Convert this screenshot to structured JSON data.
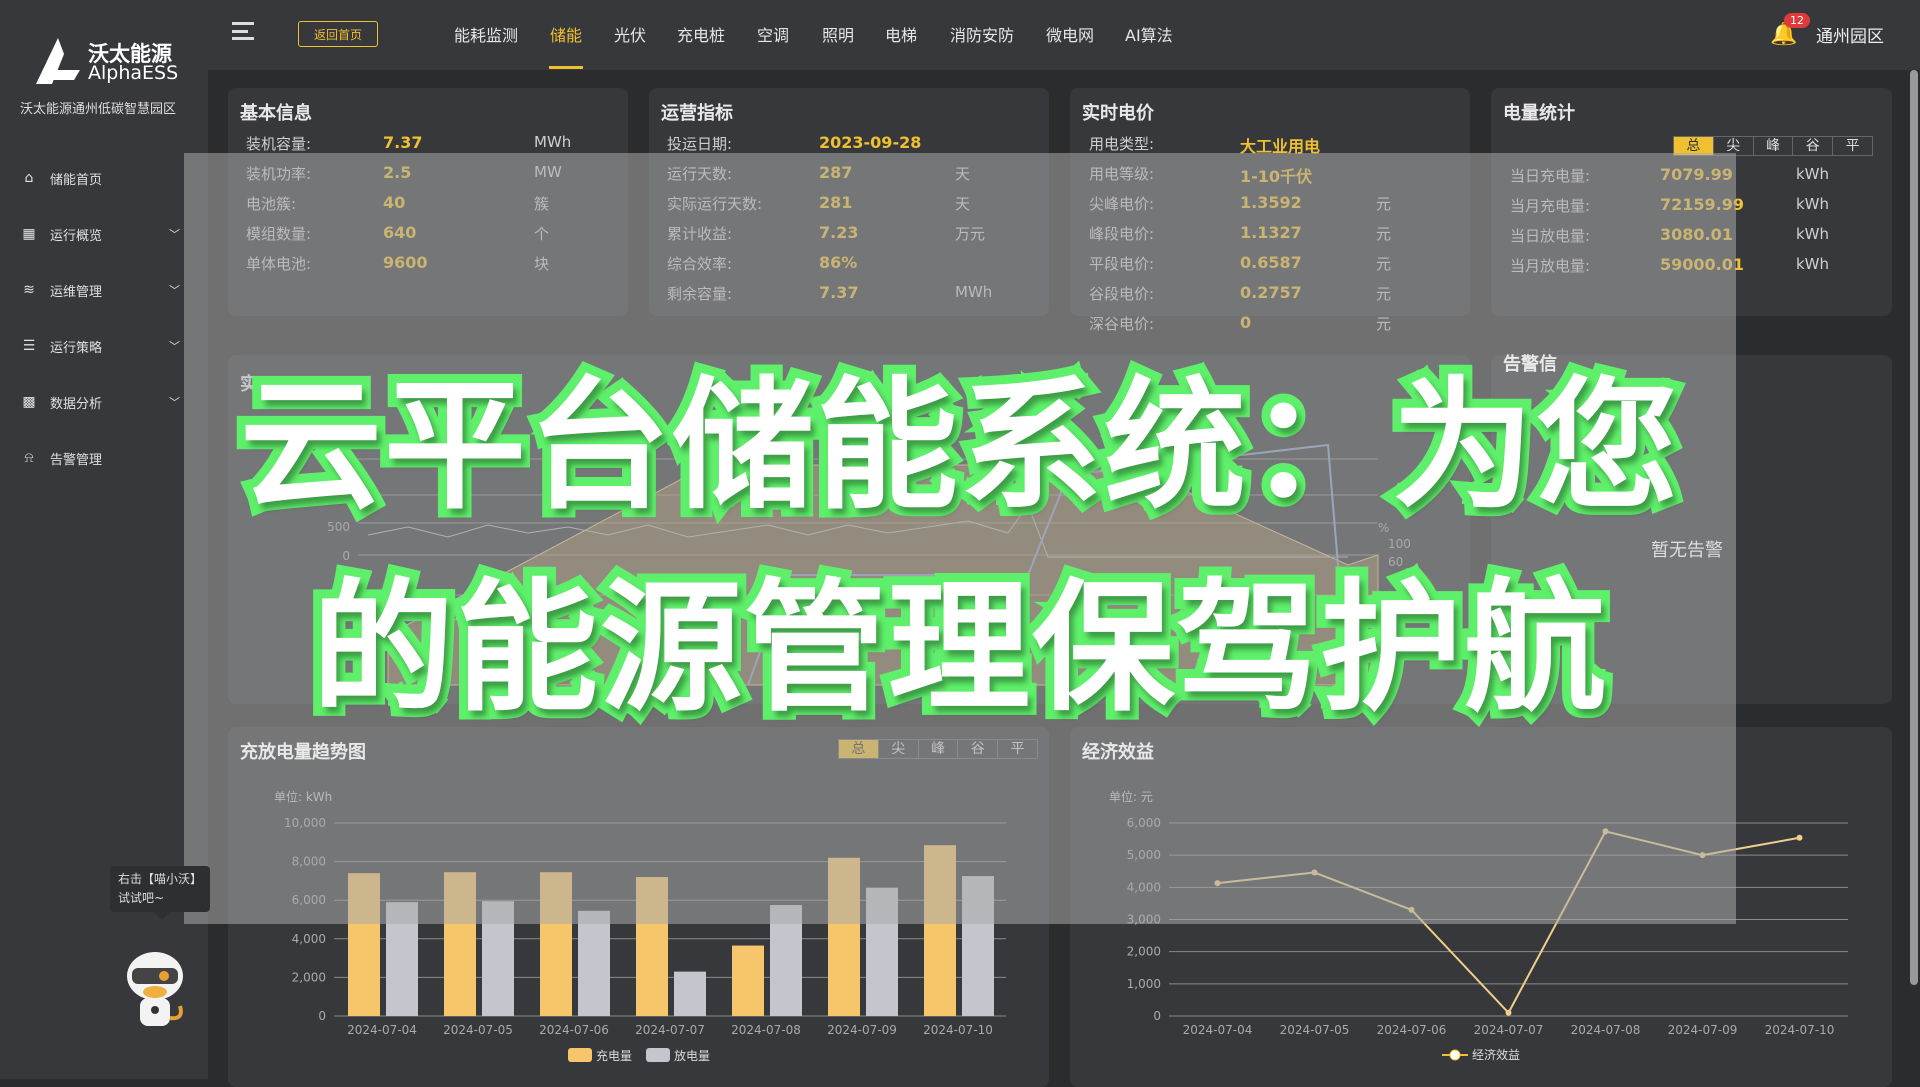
{
  "brand": {
    "name_cn": "沃太能源",
    "name_en": "AlphaESS",
    "park": "沃太能源通州低碳智慧园区"
  },
  "sidebar": {
    "items": [
      {
        "label": "储能首页",
        "icon": "home-icon",
        "expandable": false
      },
      {
        "label": "运行概览",
        "icon": "grid-icon",
        "expandable": true
      },
      {
        "label": "运维管理",
        "icon": "layers-icon",
        "expandable": true
      },
      {
        "label": "运行策略",
        "icon": "list-icon",
        "expandable": true
      },
      {
        "label": "数据分析",
        "icon": "chart-icon",
        "expandable": true
      },
      {
        "label": "告警管理",
        "icon": "alarm-icon",
        "expandable": false
      }
    ]
  },
  "topbar": {
    "home_button": "返回首页",
    "nav": [
      "能耗监测",
      "储能",
      "光伏",
      "充电桩",
      "空调",
      "照明",
      "电梯",
      "消防安防",
      "微电网",
      "AI算法"
    ],
    "active": "储能",
    "notifications": "12",
    "area": "通州园区"
  },
  "basic_info": {
    "title": "基本信息",
    "rows": [
      {
        "label": "装机容量:",
        "value": "7.37",
        "unit": "MWh"
      },
      {
        "label": "装机功率:",
        "value": "2.5",
        "unit": "MW"
      },
      {
        "label": "电池簇:",
        "value": "40",
        "unit": "簇"
      },
      {
        "label": "模组数量:",
        "value": "640",
        "unit": "个"
      },
      {
        "label": "单体电池:",
        "value": "9600",
        "unit": "块"
      }
    ]
  },
  "operations": {
    "title": "运营指标",
    "rows": [
      {
        "label": "投运日期:",
        "value": "2023-09-28",
        "unit": ""
      },
      {
        "label": "运行天数:",
        "value": "287",
        "unit": "天"
      },
      {
        "label": "实际运行天数:",
        "value": "281",
        "unit": "天"
      },
      {
        "label": "累计收益:",
        "value": "7.23",
        "unit": "万元"
      },
      {
        "label": "综合效率:",
        "value": "86%",
        "unit": ""
      },
      {
        "label": "剩余容量:",
        "value": "7.37",
        "unit": "MWh"
      }
    ]
  },
  "price": {
    "title": "实时电价",
    "rows": [
      {
        "label": "用电类型:",
        "value": "大工业用电",
        "unit": ""
      },
      {
        "label": "用电等级:",
        "value": "1-10千伏",
        "unit": ""
      },
      {
        "label": "尖峰电价:",
        "value": "1.3592",
        "unit": "元"
      },
      {
        "label": "峰段电价:",
        "value": "1.1327",
        "unit": "元"
      },
      {
        "label": "平段电价:",
        "value": "0.6587",
        "unit": "元"
      },
      {
        "label": "谷段电价:",
        "value": "0.2757",
        "unit": "元"
      },
      {
        "label": "深谷电价:",
        "value": "0",
        "unit": "元"
      }
    ]
  },
  "energy_stats": {
    "title": "电量统计",
    "tabs": [
      "总",
      "尖",
      "峰",
      "谷",
      "平"
    ],
    "active_tab": "总",
    "rows": [
      {
        "label": "当日充电量:",
        "value": "7079.99",
        "unit": "kWh"
      },
      {
        "label": "当月充电量:",
        "value": "72159.99",
        "unit": "kWh"
      },
      {
        "label": "当日放电量:",
        "value": "3080.01",
        "unit": "kWh"
      },
      {
        "label": "当月放电量:",
        "value": "59000.01",
        "unit": "kWh"
      }
    ]
  },
  "realtime_chart": {
    "title_visible": "实",
    "left_ticks": [
      "500",
      "0"
    ],
    "right_unit": "%",
    "right_ticks": [
      "100",
      "60"
    ]
  },
  "alarms": {
    "title_visible": "告警信",
    "empty": "暂无告警"
  },
  "overlay": {
    "line1": "云平台储能系统：为您",
    "line2": "的能源管理保驾护航"
  },
  "assistant": {
    "tip_line1": "右击【喵小沃】",
    "tip_line2": "试试吧~"
  },
  "colors": {
    "accent": "#f0c030",
    "charge": "#f7c56b",
    "discharge": "#c3c6cc",
    "overlay_stroke": "#5ef06a"
  },
  "chart_data": [
    {
      "type": "bar",
      "title": "充放电量趋势图",
      "tabs": [
        "总",
        "尖",
        "峰",
        "谷",
        "平"
      ],
      "active_tab": "总",
      "unit_label": "单位: kWh",
      "categories": [
        "2024-07-04",
        "2024-07-05",
        "2024-07-06",
        "2024-07-07",
        "2024-07-08",
        "2024-07-09",
        "2024-07-10"
      ],
      "ylim": [
        0,
        10000
      ],
      "yticks": [
        "0",
        "2,000",
        "4,000",
        "6,000",
        "8,000",
        "10,000"
      ],
      "grid": true,
      "legend": "bottom",
      "series": [
        {
          "name": "充电量",
          "values": [
            7400,
            7450,
            7450,
            7200,
            3650,
            8200,
            8850
          ]
        },
        {
          "name": "放电量",
          "values": [
            5900,
            5950,
            5450,
            2300,
            5750,
            6650,
            7250
          ]
        }
      ]
    },
    {
      "type": "line",
      "title": "经济效益",
      "unit_label": "单位: 元",
      "categories": [
        "2024-07-04",
        "2024-07-05",
        "2024-07-06",
        "2024-07-07",
        "2024-07-08",
        "2024-07-09",
        "2024-07-10"
      ],
      "ylim": [
        0,
        6000
      ],
      "yticks": [
        "0",
        "1,000",
        "2,000",
        "3,000",
        "4,000",
        "5,000",
        "6,000"
      ],
      "grid": true,
      "legend": "bottom",
      "series": [
        {
          "name": "经济效益",
          "values": [
            4130,
            4460,
            3300,
            100,
            5740,
            5000,
            5540
          ]
        }
      ]
    }
  ]
}
